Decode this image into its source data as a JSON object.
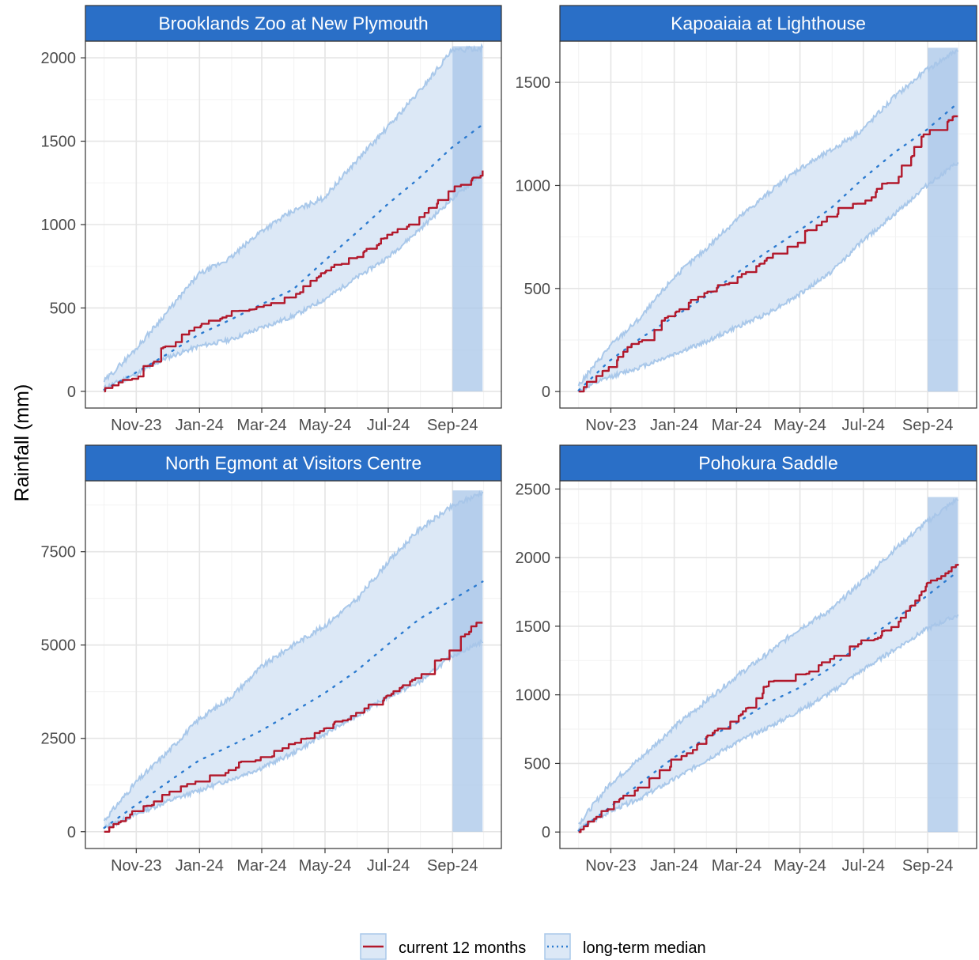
{
  "chart_data": {
    "type": "line",
    "ylabel": "Rainfall (mm)",
    "x_tick_labels": [
      "Nov-23",
      "Jan-24",
      "Mar-24",
      "May-24",
      "Jul-24",
      "Sep-24"
    ],
    "x_range": [
      "2023-10-01",
      "2024-09-30"
    ],
    "highlight_period": [
      "2024-09-01",
      "2024-09-30"
    ],
    "grid": true,
    "legend_position": "bottom",
    "legend": [
      {
        "label": "current 12 months",
        "color": "#b2182b",
        "style": "solid"
      },
      {
        "label": "long-term median",
        "color": "#2c7bd0",
        "style": "dotted"
      }
    ],
    "colors": {
      "strip_fill": "#2a6fc7",
      "band_fill": "#dce8f6",
      "band_edge": "#a9c8ea",
      "highlight_fill": "#a8c6e8",
      "current": "#b2182b",
      "median": "#2c7bd0",
      "grid_major": "#e5e5e5",
      "grid_minor": "#f2f2f2",
      "panel_border": "#333333"
    },
    "panels": [
      {
        "title": "Brooklands Zoo at New Plymouth",
        "ylim": [
          -100,
          2100
        ],
        "yticks": [
          0,
          500,
          1000,
          1500,
          2000
        ],
        "dates": [
          "2023-10-01",
          "2023-10-31",
          "2023-11-30",
          "2023-12-31",
          "2024-01-31",
          "2024-02-29",
          "2024-03-31",
          "2024-04-30",
          "2024-05-31",
          "2024-06-30",
          "2024-07-31",
          "2024-08-31",
          "2024-09-30"
        ],
        "band_lower": [
          20,
          100,
          200,
          270,
          310,
          380,
          450,
          550,
          680,
          800,
          970,
          1150,
          1310
        ],
        "band_upper": [
          60,
          250,
          470,
          700,
          800,
          960,
          1080,
          1160,
          1380,
          1580,
          1800,
          2040,
          2060
        ],
        "median": [
          10,
          110,
          220,
          340,
          430,
          520,
          610,
          780,
          950,
          1120,
          1280,
          1460,
          1600
        ],
        "current": [
          0,
          80,
          270,
          380,
          460,
          490,
          560,
          720,
          800,
          920,
          1030,
          1200,
          1320
        ]
      },
      {
        "title": "Kapoaiaia at Lighthouse",
        "ylim": [
          -80,
          1700
        ],
        "yticks": [
          0,
          500,
          1000,
          1500
        ],
        "dates": [
          "2023-10-01",
          "2023-10-31",
          "2023-11-30",
          "2023-12-31",
          "2024-01-31",
          "2024-02-29",
          "2024-03-31",
          "2024-04-30",
          "2024-05-31",
          "2024-06-30",
          "2024-07-31",
          "2024-08-31",
          "2024-09-30"
        ],
        "band_lower": [
          5,
          70,
          120,
          180,
          240,
          310,
          380,
          470,
          580,
          730,
          860,
          1000,
          1110
        ],
        "band_upper": [
          30,
          220,
          360,
          550,
          690,
          830,
          960,
          1080,
          1170,
          1270,
          1430,
          1560,
          1660
        ],
        "median": [
          5,
          150,
          260,
          360,
          460,
          570,
          680,
          780,
          890,
          1030,
          1160,
          1270,
          1400
        ],
        "current": [
          0,
          120,
          260,
          380,
          470,
          540,
          660,
          740,
          860,
          930,
          1030,
          1260,
          1340
        ]
      },
      {
        "title": "North Egmont at Visitors Centre",
        "ylim": [
          -450,
          9400
        ],
        "yticks": [
          0,
          2500,
          5000,
          7500
        ],
        "dates": [
          "2023-10-01",
          "2023-10-31",
          "2023-11-30",
          "2023-12-31",
          "2024-01-31",
          "2024-02-29",
          "2024-03-31",
          "2024-04-30",
          "2024-05-31",
          "2024-06-30",
          "2024-07-31",
          "2024-08-31",
          "2024-09-30"
        ],
        "band_lower": [
          100,
          450,
          800,
          1100,
          1400,
          1700,
          2100,
          2600,
          3100,
          3600,
          4000,
          4700,
          5100
        ],
        "band_upper": [
          300,
          1300,
          2100,
          3000,
          3600,
          4400,
          5000,
          5500,
          6200,
          7200,
          8100,
          8700,
          9100
        ],
        "median": [
          100,
          700,
          1300,
          1900,
          2300,
          2700,
          3200,
          3700,
          4300,
          5000,
          5700,
          6200,
          6700
        ],
        "current": [
          0,
          550,
          950,
          1350,
          1700,
          1950,
          2300,
          2700,
          3150,
          3600,
          4100,
          5000,
          5650
        ]
      },
      {
        "title": "Pohokura Saddle",
        "ylim": [
          -120,
          2560
        ],
        "yticks": [
          0,
          500,
          1000,
          1500,
          2000,
          2500
        ],
        "dates": [
          "2023-10-01",
          "2023-10-31",
          "2023-11-30",
          "2023-12-31",
          "2024-01-31",
          "2024-02-29",
          "2024-03-31",
          "2024-04-30",
          "2024-05-31",
          "2024-06-30",
          "2024-07-31",
          "2024-08-31",
          "2024-09-30"
        ],
        "band_lower": [
          20,
          150,
          250,
          380,
          520,
          650,
          760,
          880,
          1020,
          1180,
          1330,
          1480,
          1580
        ],
        "band_upper": [
          60,
          350,
          540,
          760,
          950,
          1130,
          1300,
          1480,
          1620,
          1830,
          2060,
          2260,
          2430
        ],
        "median": [
          10,
          180,
          360,
          540,
          680,
          790,
          940,
          1050,
          1200,
          1380,
          1550,
          1720,
          1900
        ],
        "current": [
          0,
          180,
          320,
          520,
          680,
          800,
          1070,
          1130,
          1250,
          1380,
          1480,
          1800,
          1930
        ]
      }
    ]
  }
}
